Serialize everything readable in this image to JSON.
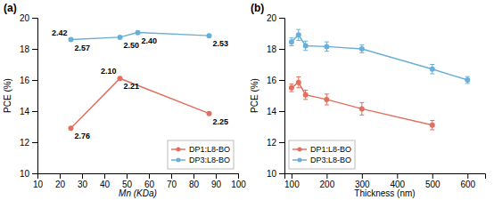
{
  "chart_data": [
    {
      "type": "line",
      "title": "(a)",
      "xlabel": "Mn (KDa)",
      "ylabel": "PCE (%)",
      "xlim": [
        10,
        100
      ],
      "ylim": [
        10,
        20
      ],
      "xticks": [
        10,
        20,
        30,
        40,
        50,
        60,
        70,
        80,
        90,
        100
      ],
      "yticks": [
        10,
        12,
        14,
        16,
        18,
        20
      ],
      "grid": false,
      "legend": "lower right",
      "marker": "circle",
      "series": [
        {
          "name": "DP1:L8-BO",
          "color": "#E07060",
          "x": [
            25,
            47,
            87
          ],
          "values": [
            12.9,
            16.1,
            13.85
          ]
        },
        {
          "name": "DP3:L8-BO",
          "color": "#6BAED6",
          "x": [
            25,
            47,
            55,
            87
          ],
          "values": [
            18.6,
            18.75,
            19.05,
            18.85
          ]
        }
      ],
      "annotations": [
        {
          "text": "2.76",
          "x": 25,
          "y": 12.9
        },
        {
          "text": "2.10",
          "x": 47,
          "y": 16.1
        },
        {
          "text": "2.21",
          "x": 47,
          "y": 16.1
        },
        {
          "text": "2.25",
          "x": 87,
          "y": 13.85
        },
        {
          "text": "2.42",
          "x": 25,
          "y": 18.6
        },
        {
          "text": "2.57",
          "x": 25,
          "y": 18.6
        },
        {
          "text": "2.50",
          "x": 47,
          "y": 18.75
        },
        {
          "text": "2.40",
          "x": 55,
          "y": 19.05
        },
        {
          "text": "2.53",
          "x": 87,
          "y": 18.85
        }
      ]
    },
    {
      "type": "line",
      "title": "(b)",
      "xlabel": "Thickness (nm)",
      "ylabel": "PCE (%)",
      "xlim": [
        80,
        650
      ],
      "ylim": [
        10,
        20
      ],
      "xticks": [
        100,
        200,
        300,
        400,
        500,
        600
      ],
      "yticks": [
        10,
        12,
        14,
        16,
        18,
        20
      ],
      "grid": false,
      "legend": "lower left",
      "marker": "circle",
      "series": [
        {
          "name": "DP1:L8-BO",
          "color": "#E07060",
          "x": [
            100,
            120,
            140,
            200,
            300,
            500
          ],
          "values": [
            15.5,
            15.85,
            15.05,
            14.75,
            14.15,
            13.1
          ],
          "errors": [
            0.25,
            0.35,
            0.3,
            0.35,
            0.4,
            0.3
          ]
        },
        {
          "name": "DP3:L8-BO",
          "color": "#6BAED6",
          "x": [
            100,
            120,
            140,
            200,
            300,
            500,
            600
          ],
          "values": [
            18.45,
            18.9,
            18.2,
            18.15,
            18.0,
            16.7,
            16.0
          ],
          "errors": [
            0.25,
            0.35,
            0.3,
            0.3,
            0.25,
            0.3,
            0.22
          ]
        }
      ]
    }
  ]
}
